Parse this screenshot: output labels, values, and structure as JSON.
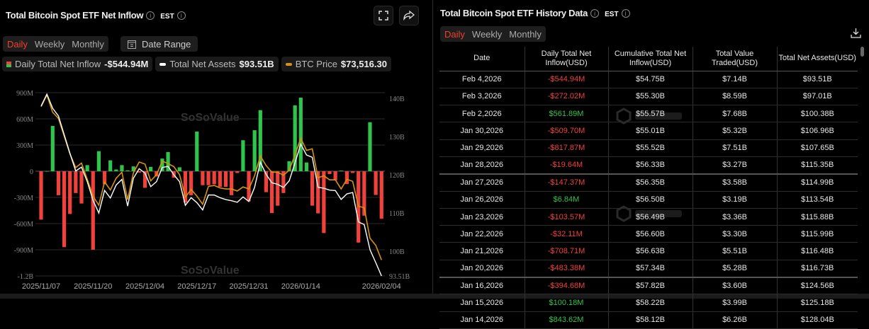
{
  "left": {
    "title": "Total Bitcoin Spot ETF Net Inflow",
    "tz": "EST",
    "tabs": [
      "Daily",
      "Weekly",
      "Monthly"
    ],
    "active_tab": "Daily",
    "date_range": "Date Range",
    "legend": [
      {
        "label": "Daily Total Net Inflow",
        "value": "-$544.94M"
      },
      {
        "label": "Total Net Assets",
        "value": "$93.51B"
      },
      {
        "label": "BTC Price",
        "value": "$73,516.30"
      }
    ],
    "watermark": "SoSoValue"
  },
  "right": {
    "title": "Total Bitcoin Spot ETF History Data",
    "tz": "EST",
    "tabs": [
      "Daily",
      "Weekly",
      "Monthly"
    ],
    "active_tab": "Daily",
    "columns": [
      "Date",
      "Daily Total Net Inflow(USD)",
      "Cumulative Total Net Inflow(USD)",
      "Total Value Traded(USD)",
      "Total Net Assets(USD)"
    ],
    "rows": [
      [
        "Feb 4,2026",
        "-$544.94M",
        "$54.75B",
        "$7.14B",
        "$93.51B"
      ],
      [
        "Feb 3,2026",
        "-$272.02M",
        "$55.30B",
        "$8.59B",
        "$97.01B"
      ],
      [
        "Feb 2,2026",
        "$561.89M",
        "$55.57B",
        "$7.68B",
        "$100.38B"
      ],
      [
        "Jan 30,2026",
        "-$509.70M",
        "$55.01B",
        "$5.32B",
        "$106.96B"
      ],
      [
        "Jan 29,2026",
        "-$817.87M",
        "$55.52B",
        "$7.51B",
        "$107.65B"
      ],
      [
        "Jan 28,2026",
        "-$19.64M",
        "$56.33B",
        "$3.27B",
        "$115.35B"
      ],
      [
        "Jan 27,2026",
        "-$147.37M",
        "$56.35B",
        "$3.58B",
        "$114.99B"
      ],
      [
        "Jan 26,2026",
        "$6.84M",
        "$56.50B",
        "$3.19B",
        "$113.54B"
      ],
      [
        "Jan 23,2026",
        "-$103.57M",
        "$56.49B",
        "$3.36B",
        "$115.88B"
      ],
      [
        "Jan 22,2026",
        "-$32.11M",
        "$56.60B",
        "$3.30B",
        "$115.99B"
      ],
      [
        "Jan 21,2026",
        "-$708.71M",
        "$56.63B",
        "$5.51B",
        "$116.48B"
      ],
      [
        "Jan 20,2026",
        "-$483.38M",
        "$57.34B",
        "$5.28B",
        "$116.73B"
      ],
      [
        "Jan 16,2026",
        "-$394.68M",
        "$57.82B",
        "$3.60B",
        "$124.56B"
      ],
      [
        "Jan 15,2026",
        "$100.18M",
        "$58.22B",
        "$3.99B",
        "$125.18B"
      ],
      [
        "Jan 14,2026",
        "$843.62M",
        "$58.12B",
        "$6.26B",
        "$128.04B"
      ]
    ]
  },
  "colors": {
    "positive": "#2fc44b",
    "negative": "#f0413c",
    "assets": "#ffffff",
    "btc": "#d4930d",
    "accent": "#f0402c"
  },
  "chart_data": {
    "type": "bar",
    "title": "Total Bitcoin Spot ETF Net Inflow",
    "xlabel": "",
    "ylabel": "",
    "x_tick_labels": [
      {
        "index": 0,
        "label": "2025/11/07"
      },
      {
        "index": 9,
        "label": "2025/11/20"
      },
      {
        "index": 18,
        "label": "2025/12/04"
      },
      {
        "index": 27,
        "label": "2025/12/17"
      },
      {
        "index": 36,
        "label": "2025/12/31"
      },
      {
        "index": 45,
        "label": "2026/01/14"
      },
      {
        "index": 59,
        "label": "2026/02/04"
      }
    ],
    "y_left": {
      "ticks": [
        "900M",
        "600M",
        "300M",
        "0",
        "-300M",
        "-600M",
        "-900M",
        "-1.2B"
      ],
      "tick_values": [
        900,
        600,
        300,
        0,
        -300,
        -600,
        -900,
        -1200
      ],
      "ylim": [
        -1200,
        900
      ],
      "unit": "M USD"
    },
    "y_right": {
      "ticks": [
        "140B",
        "130B",
        "120B",
        "110B",
        "100B",
        "93.51B"
      ],
      "tick_values": [
        140,
        130,
        120,
        110,
        100,
        93.51
      ],
      "unit": "B USD"
    },
    "series": [
      {
        "name": "Daily Total Net Inflow",
        "type": "bar",
        "unit": "M USD",
        "values": [
          -555,
          2,
          520,
          -275,
          -870,
          -490,
          -250,
          -370,
          70,
          -900,
          230,
          -150,
          125,
          20,
          70,
          10,
          55,
          -15,
          -190,
          50,
          -60,
          145,
          220,
          -75,
          45,
          -360,
          -275,
          455,
          -160,
          -160,
          -150,
          -180,
          -180,
          -275,
          -20,
          355,
          -345,
          470,
          700,
          -240,
          -480,
          -395,
          -250,
          115,
          755,
          843.62,
          100.18,
          -394.68,
          -483.38,
          -708.71,
          -32.11,
          -103.57,
          6.84,
          -147.37,
          -19.64,
          -817.87,
          -509.7,
          561.89,
          -272.02,
          -544.94
        ]
      },
      {
        "name": "Total Net Assets",
        "type": "line",
        "unit": "B USD",
        "values": [
          138,
          141.1,
          137.4,
          135.4,
          130.5,
          125.6,
          121,
          122,
          118.2,
          113.3,
          110,
          115.9,
          113.9,
          117.3,
          118.8,
          111.8,
          119.1,
          121.6,
          120.4,
          116.9,
          118.2,
          121.9,
          122.2,
          120,
          118.2,
          112,
          114,
          112.7,
          110.8,
          114.7,
          114.7,
          114,
          113.5,
          113.2,
          112.8,
          114.2,
          113,
          116.7,
          123.3,
          120.1,
          117.9,
          117.5,
          116.7,
          118.4,
          123.1,
          128.04,
          125.18,
          124.56,
          116.73,
          116.48,
          115.99,
          115.88,
          113.54,
          114.99,
          115.35,
          107.65,
          106.96,
          100.38,
          97.01,
          93.51
        ]
      },
      {
        "name": "BTC Price",
        "type": "line",
        "unit": "USD",
        "values": [
          103700,
          106000,
          102600,
          101400,
          97900,
          94400,
          91700,
          92600,
          89400,
          86100,
          84300,
          88900,
          87300,
          89600,
          90800,
          85400,
          90700,
          92800,
          92400,
          89100,
          90300,
          93000,
          92500,
          91900,
          90300,
          85900,
          87400,
          86100,
          84500,
          88000,
          88200,
          87700,
          87500,
          87500,
          87100,
          87900,
          87500,
          90100,
          94000,
          92100,
          90800,
          90800,
          90200,
          91200,
          94200,
          97500,
          95100,
          95400,
          89700,
          90100,
          89300,
          89300,
          87500,
          89400,
          89000,
          84100,
          83800,
          77800,
          76400,
          73516.3
        ]
      }
    ]
  }
}
